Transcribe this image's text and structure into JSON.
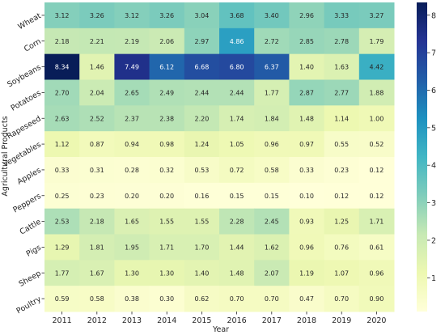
{
  "chart_data": {
    "type": "heatmap",
    "title": "",
    "xlabel": "Year",
    "ylabel": "Agricultural Products",
    "x": [
      "2011",
      "2012",
      "2013",
      "2014",
      "2015",
      "2016",
      "2017",
      "2018",
      "2019",
      "2020"
    ],
    "y": [
      "Wheat",
      "Corn",
      "Soybeans",
      "Potatoes",
      "Rapeseed",
      "Vegetables",
      "Apples",
      "Peppers",
      "Cattle",
      "Pigs",
      "Sheep",
      "Poultry"
    ],
    "values": [
      [
        3.12,
        3.26,
        3.12,
        3.26,
        3.04,
        3.68,
        3.4,
        2.96,
        3.33,
        3.27
      ],
      [
        2.18,
        2.21,
        2.19,
        2.06,
        2.97,
        4.86,
        2.72,
        2.85,
        2.78,
        1.79
      ],
      [
        8.34,
        1.46,
        7.49,
        6.12,
        6.68,
        6.8,
        6.37,
        1.4,
        1.63,
        4.42
      ],
      [
        2.7,
        2.04,
        2.65,
        2.49,
        2.44,
        2.44,
        1.77,
        2.87,
        2.77,
        1.88
      ],
      [
        2.63,
        2.52,
        2.37,
        2.38,
        2.2,
        1.74,
        1.84,
        1.48,
        1.14,
        1.0
      ],
      [
        1.12,
        0.87,
        0.94,
        0.98,
        1.24,
        1.05,
        0.96,
        0.97,
        0.55,
        0.52
      ],
      [
        0.33,
        0.31,
        0.28,
        0.32,
        0.53,
        0.72,
        0.58,
        0.33,
        0.23,
        0.12
      ],
      [
        0.25,
        0.23,
        0.2,
        0.2,
        0.16,
        0.15,
        0.15,
        0.1,
        0.12,
        0.12
      ],
      [
        2.53,
        2.18,
        1.65,
        1.55,
        1.55,
        2.28,
        2.45,
        0.93,
        1.25,
        1.71
      ],
      [
        1.29,
        1.81,
        1.95,
        1.71,
        1.7,
        1.44,
        1.62,
        0.96,
        0.76,
        0.61
      ],
      [
        1.77,
        1.67,
        1.3,
        1.3,
        1.4,
        1.48,
        2.07,
        1.19,
        1.07,
        0.96
      ],
      [
        0.59,
        0.58,
        0.38,
        0.3,
        0.62,
        0.7,
        0.7,
        0.47,
        0.7,
        0.9
      ]
    ],
    "colorscale": "YlGnBu",
    "vmin": 0.1,
    "vmax": 8.34,
    "colorbar_ticks": [
      "1",
      "2",
      "3",
      "4",
      "5",
      "6",
      "7",
      "8"
    ],
    "annotation_format": "2 decimals"
  }
}
